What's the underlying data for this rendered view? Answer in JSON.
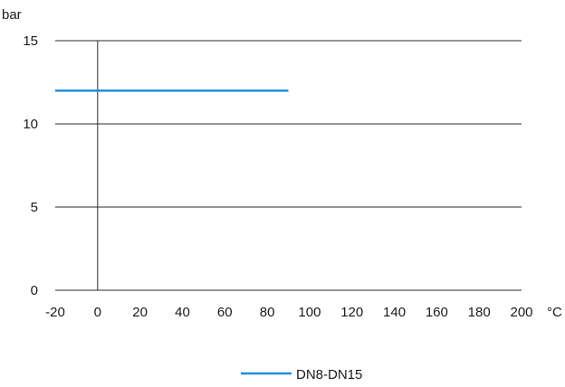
{
  "chart_data": {
    "type": "line",
    "ylabel": "bar",
    "xlabel": "°C",
    "xlim": [
      -20,
      200
    ],
    "ylim": [
      0,
      15
    ],
    "x_ticks": [
      -20,
      0,
      20,
      40,
      60,
      80,
      100,
      120,
      140,
      160,
      180,
      200
    ],
    "y_ticks": [
      0,
      5,
      10,
      15
    ],
    "grid": "horizontal",
    "legend_position": "bottom",
    "series": [
      {
        "name": "DN8-DN15",
        "color": "#1f8fdb",
        "x": [
          -20,
          90
        ],
        "y": [
          12,
          12
        ]
      }
    ]
  }
}
